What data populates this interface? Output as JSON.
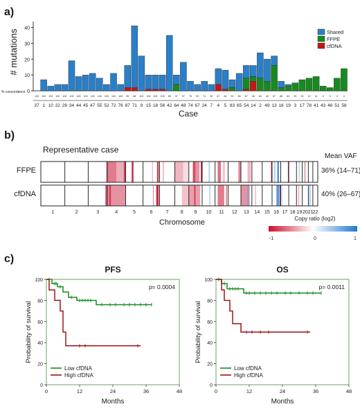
{
  "panels": {
    "a": {
      "letter": "a)"
    },
    "b": {
      "letter": "b)"
    },
    "c": {
      "letter": "c)"
    }
  },
  "chart_data": [
    {
      "type": "bar",
      "panel": "a",
      "stacked": true,
      "ylabel": "# mutations",
      "xlabel": "Case",
      "ylim": [
        0,
        42
      ],
      "yticks": [
        0,
        10,
        20,
        30,
        40
      ],
      "concordance_label": "% concordance",
      "categories": [
        "37",
        "1",
        "10",
        "22",
        "28",
        "34",
        "44",
        "45",
        "47",
        "55",
        "52",
        "72",
        "76",
        "87",
        "71",
        "9",
        "15",
        "18",
        "56",
        "42",
        "64",
        "48",
        "74",
        "67",
        "24",
        "7",
        "4",
        "5",
        "83",
        "65",
        "54",
        "14",
        "2",
        "49",
        "13",
        "16",
        "19",
        "3",
        "17",
        "78",
        "41",
        "43",
        "46",
        "51",
        "58"
      ],
      "concordance": [
        "100",
        "100",
        "100",
        "100",
        "100",
        "100",
        "100",
        "100",
        "100",
        "100",
        "100",
        "100",
        "100",
        "95",
        "88",
        "100",
        "100",
        "100",
        "100",
        "89",
        "97",
        "97",
        "75",
        "92",
        "71",
        "50",
        "67",
        "84",
        "92",
        "65",
        "67",
        "45",
        "63",
        "40",
        "67",
        "88",
        "83",
        "25",
        "20",
        "13",
        "11",
        "0",
        "0",
        "0",
        "0"
      ],
      "legend": [
        "Shared",
        "FFPE",
        "cfDNA"
      ],
      "legend_position": "top-right",
      "colors": {
        "Shared": "#2a7fc9",
        "FFPE": "#178a1f",
        "cfDNA": "#c01818"
      },
      "series": [
        {
          "name": "Shared",
          "values": [
            0,
            7,
            3,
            4,
            4,
            19,
            9,
            10,
            11,
            8,
            4,
            11,
            4,
            14,
            39,
            22,
            9,
            9,
            9,
            35,
            6,
            18,
            6,
            4,
            6,
            4,
            10,
            12,
            5,
            11,
            8,
            7,
            16,
            14,
            6,
            4,
            1,
            0,
            0,
            0,
            0,
            0,
            0,
            0,
            0
          ]
        },
        {
          "name": "FFPE",
          "values": [
            0,
            0,
            0,
            0,
            0,
            0,
            0,
            0,
            0,
            0,
            0,
            0,
            0,
            0,
            0,
            0,
            0,
            0,
            0,
            0,
            4,
            0,
            0,
            0,
            0,
            0,
            0,
            0,
            2,
            0,
            7,
            3,
            8,
            6,
            16,
            2,
            3,
            5,
            7,
            8,
            9,
            3,
            2,
            8,
            14
          ]
        },
        {
          "name": "cfDNA",
          "values": [
            0,
            0,
            0,
            0,
            0,
            0,
            0,
            0,
            0,
            0,
            0,
            0,
            0,
            2,
            2,
            0,
            1,
            1,
            1,
            0,
            0,
            0,
            0,
            0,
            0,
            0,
            4,
            1,
            0,
            0,
            1,
            6,
            0,
            0,
            0,
            0,
            0,
            0,
            0,
            0,
            0,
            0,
            0,
            0,
            0
          ]
        }
      ]
    },
    {
      "type": "heatmap",
      "panel": "b",
      "title": "Representative case",
      "xlabel": "Chromosome",
      "chromosomes": [
        "1",
        "2",
        "3",
        "4",
        "5",
        "6",
        "7",
        "8",
        "9",
        "10",
        "11",
        "12",
        "13",
        "14",
        "15",
        "16",
        "17",
        "18",
        "19",
        "20",
        "21",
        "22"
      ],
      "rows": [
        {
          "name": "FFPE",
          "mean_vaf": "36% (14–71)"
        },
        {
          "name": "cfDNA",
          "mean_vaf": "40% (26–67)"
        }
      ],
      "mean_vaf_header": "Mean VAF",
      "colorbar": {
        "label": "Copy ratio (log2)",
        "min_label": "-1",
        "mid_label": "0",
        "max_label": "1",
        "range": [
          -1,
          1
        ],
        "low_color": "#c8102e",
        "mid_color": "#ffffff",
        "high_color": "#1f78d1"
      }
    },
    {
      "type": "line",
      "panel": "c",
      "subtype": "kaplan-meier",
      "title": "PFS",
      "pvalue": "p= 0.0004",
      "xlabel": "Months",
      "ylabel": "Probability of survival",
      "xlim": [
        0,
        48
      ],
      "ylim": [
        0,
        100
      ],
      "xticks": [
        0,
        12,
        24,
        36,
        48
      ],
      "yticks": [
        0,
        20,
        40,
        60,
        80,
        100
      ],
      "legend_position": "bottom-left",
      "series": [
        {
          "name": "Low cfDNA",
          "color": "#178a1f",
          "steps": [
            [
              0,
              100
            ],
            [
              2,
              96
            ],
            [
              4,
              93
            ],
            [
              6,
              88
            ],
            [
              8,
              83
            ],
            [
              11,
              80
            ],
            [
              18,
              76
            ],
            [
              38,
              76
            ]
          ],
          "censors": [
            [
              1,
              100
            ],
            [
              3,
              96
            ],
            [
              3.5,
              96
            ],
            [
              5,
              93
            ],
            [
              9,
              83
            ],
            [
              12,
              80
            ],
            [
              13,
              80
            ],
            [
              14,
              80
            ],
            [
              15,
              80
            ],
            [
              16,
              80
            ],
            [
              20,
              76
            ],
            [
              23,
              76
            ],
            [
              25,
              76
            ],
            [
              28,
              76
            ],
            [
              30,
              76
            ],
            [
              32,
              76
            ],
            [
              34,
              76
            ],
            [
              36,
              76
            ],
            [
              38,
              76
            ]
          ]
        },
        {
          "name": "High cfDNA",
          "color": "#9b1313",
          "steps": [
            [
              0,
              100
            ],
            [
              1,
              90
            ],
            [
              3,
              80
            ],
            [
              5,
              70
            ],
            [
              6,
              50
            ],
            [
              7,
              37
            ],
            [
              34,
              37
            ]
          ],
          "censors": [
            [
              12,
              37
            ],
            [
              14,
              37
            ],
            [
              33,
              37
            ]
          ]
        }
      ]
    },
    {
      "type": "line",
      "panel": "c",
      "subtype": "kaplan-meier",
      "title": "OS",
      "pvalue": "p= 0.0011",
      "xlabel": "Months",
      "ylabel": "Probability of survival",
      "xlim": [
        0,
        48
      ],
      "ylim": [
        0,
        100
      ],
      "xticks": [
        0,
        12,
        24,
        36,
        48
      ],
      "yticks": [
        0,
        20,
        40,
        60,
        80,
        100
      ],
      "legend_position": "bottom-left",
      "series": [
        {
          "name": "Low cfDNA",
          "color": "#178a1f",
          "steps": [
            [
              0,
              100
            ],
            [
              2,
              96
            ],
            [
              4,
              91
            ],
            [
              10,
              87
            ],
            [
              38,
              87
            ]
          ],
          "censors": [
            [
              1,
              100
            ],
            [
              3,
              96
            ],
            [
              5,
              91
            ],
            [
              6,
              91
            ],
            [
              7,
              91
            ],
            [
              8,
              91
            ],
            [
              11,
              87
            ],
            [
              12,
              87
            ],
            [
              14,
              87
            ],
            [
              16,
              87
            ],
            [
              18,
              87
            ],
            [
              20,
              87
            ],
            [
              22,
              87
            ],
            [
              25,
              87
            ],
            [
              27,
              87
            ],
            [
              30,
              87
            ],
            [
              33,
              87
            ],
            [
              35,
              87
            ],
            [
              38,
              87
            ]
          ]
        },
        {
          "name": "High cfDNA",
          "color": "#9b1313",
          "steps": [
            [
              0,
              100
            ],
            [
              2,
              90
            ],
            [
              3,
              80
            ],
            [
              5,
              70
            ],
            [
              6,
              58
            ],
            [
              9,
              50
            ],
            [
              34,
              50
            ]
          ],
          "censors": [
            [
              11,
              50
            ],
            [
              13,
              50
            ],
            [
              16,
              50
            ],
            [
              19,
              50
            ],
            [
              33,
              50
            ]
          ]
        }
      ]
    }
  ]
}
